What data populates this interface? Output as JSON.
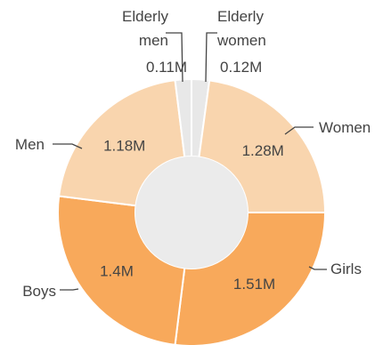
{
  "chart_data": {
    "type": "pie",
    "donut": true,
    "slices": [
      {
        "label": "Elderly women",
        "label_lines": [
          "Elderly",
          "women"
        ],
        "value": 0.12,
        "display": "0.12M",
        "color": "#e8e8e8"
      },
      {
        "label": "Women",
        "label_lines": [
          "Women"
        ],
        "value": 1.28,
        "display": "1.28M",
        "color": "#f9d5ae"
      },
      {
        "label": "Girls",
        "label_lines": [
          "Girls"
        ],
        "value": 1.51,
        "display": "1.51M",
        "color": "#f8a95b"
      },
      {
        "label": "Boys",
        "label_lines": [
          "Boys"
        ],
        "value": 1.4,
        "display": "1.4M",
        "color": "#f8a95b"
      },
      {
        "label": "Men",
        "label_lines": [
          "Men"
        ],
        "value": 1.18,
        "display": "1.18M",
        "color": "#f9d5ae"
      },
      {
        "label": "Elderly men",
        "label_lines": [
          "Elderly",
          "men"
        ],
        "value": 0.11,
        "display": "0.11M",
        "color": "#e8e8e8"
      }
    ],
    "center_color": "#ebebeb"
  }
}
